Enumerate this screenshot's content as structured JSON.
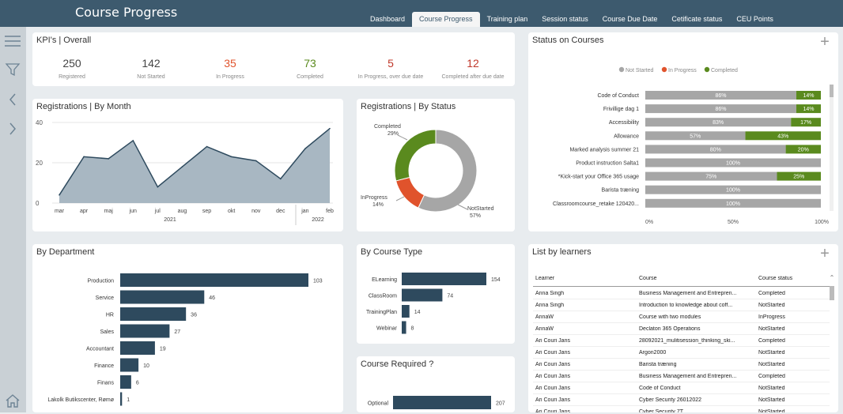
{
  "app": {
    "title": "Course Progress"
  },
  "tabs": [
    "Dashboard",
    "Course Progress",
    "Training plan",
    "Session status",
    "Course Due Date",
    "Cetificate status",
    "CEU Points"
  ],
  "kpi": {
    "title": "KPI's | Overall",
    "items": [
      {
        "value": "250",
        "label": "Registered",
        "color": "#444444"
      },
      {
        "value": "142",
        "label": "Not Started",
        "color": "#444444"
      },
      {
        "value": "35",
        "label": "In Progress",
        "color": "#e0532c"
      },
      {
        "value": "73",
        "label": "Completed",
        "color": "#5a8a1e"
      },
      {
        "value": "5",
        "label": "In Progress, over due date",
        "color": "#c0392b"
      },
      {
        "value": "12",
        "label": "Completed after due date",
        "color": "#c0392b"
      }
    ]
  },
  "reg_month": {
    "title": "Registrations | By Month",
    "chart_data": {
      "type": "area",
      "x": [
        "mar",
        "apr",
        "maj",
        "jun",
        "jul",
        "aug",
        "sep",
        "okt",
        "nov",
        "dec",
        "jan",
        "feb"
      ],
      "values": [
        4,
        23,
        22,
        31,
        8,
        18,
        28,
        23,
        21,
        12,
        27,
        37
      ],
      "ylim": [
        0,
        40
      ],
      "yticks": [
        "40",
        "20",
        "0"
      ],
      "year_labels": [
        "2021",
        "2022"
      ]
    }
  },
  "reg_status": {
    "title": "Registrations | By Status",
    "chart_data": {
      "type": "pie",
      "slices": [
        {
          "label": "NotStarted",
          "value": 57,
          "pct": "57%",
          "color": "#a6a6a6"
        },
        {
          "label": "InProgress",
          "value": 14,
          "pct": "14%",
          "color": "#e0532c"
        },
        {
          "label": "Completed",
          "value": 29,
          "pct": "29%",
          "color": "#5a8a1e"
        }
      ]
    }
  },
  "status_courses": {
    "title": "Status on Courses",
    "legend": [
      {
        "label": "Not Started",
        "color": "#a6a6a6"
      },
      {
        "label": "In Progress",
        "color": "#e0532c"
      },
      {
        "label": "Completed",
        "color": "#5a8a1e"
      }
    ],
    "chart_data": {
      "type": "bar",
      "stacked": true,
      "categories": [
        "Code of Conduct",
        "Frivillige dag 1",
        "Accessibility",
        "Allowance",
        "Marked analysis summer 21",
        "Product instruction Salta1",
        "*Kick-start your Office 365 usage",
        "Barista træning",
        "Classroomcourse_retake 120420..."
      ],
      "series": [
        {
          "name": "Not Started",
          "values": [
            86,
            86,
            83,
            57,
            80,
            100,
            75,
            100,
            100
          ],
          "labels": [
            "86%",
            "86%",
            "83%",
            "57%",
            "80%",
            "100%",
            "75%",
            "100%",
            "100%"
          ]
        },
        {
          "name": "Completed",
          "values": [
            14,
            14,
            17,
            43,
            20,
            0,
            25,
            0,
            0
          ],
          "labels": [
            "14%",
            "14%",
            "17%",
            "43%",
            "20%",
            "",
            "25%",
            "",
            ""
          ]
        }
      ],
      "xticks": [
        "0%",
        "50%",
        "100%"
      ]
    }
  },
  "department": {
    "title": "By Department",
    "chart_data": {
      "type": "bar",
      "orientation": "horizontal",
      "categories": [
        "Production",
        "Service",
        "HR",
        "Sales",
        "Accountant",
        "Finance",
        "Finans",
        "Lakolk Butikscenter, Rømø"
      ],
      "values": [
        103,
        46,
        36,
        27,
        19,
        10,
        6,
        1
      ],
      "labels": [
        "103",
        "46",
        "36",
        "27",
        "19",
        "10",
        "6",
        "1"
      ],
      "max": 103
    }
  },
  "course_type": {
    "title": "By Course Type",
    "chart_data": {
      "type": "bar",
      "orientation": "horizontal",
      "categories": [
        "ELearning",
        "ClassRoom",
        "TrainingPlan",
        "Webinar"
      ],
      "values": [
        154,
        74,
        14,
        8
      ],
      "labels": [
        "154",
        "74",
        "14",
        "8"
      ],
      "max": 154
    }
  },
  "course_required": {
    "title": "Course Required ?",
    "chart_data": {
      "type": "bar",
      "orientation": "horizontal",
      "categories": [
        "Optional"
      ],
      "values": [
        207
      ],
      "labels": [
        "207"
      ],
      "max": 207
    }
  },
  "learners": {
    "title": "List by learners",
    "columns": [
      "Learner",
      "Course",
      "Course status"
    ],
    "rows": [
      [
        "Anna Singh",
        "Business Management and Entrepren...",
        "Completed"
      ],
      [
        "Anna Singh",
        "Introduction to knowledge about coff...",
        "NotStarted"
      ],
      [
        "AnnaW",
        "Course with two modules",
        "InProgress"
      ],
      [
        "AnnaW",
        "Declaton 365 Operations",
        "NotStarted"
      ],
      [
        "Ari Couri Jans",
        "28092021_mulitisession_thinking_ski...",
        "Completed"
      ],
      [
        "Ari Couri Jans",
        "Argon2000",
        "NotStarted"
      ],
      [
        "Ari Couri Jans",
        "Barista træning",
        "NotStarted"
      ],
      [
        "Ari Couri Jans",
        "Business Management and Entrepren...",
        "Completed"
      ],
      [
        "Ari Couri Jans",
        "Code of Conduct",
        "NotStarted"
      ],
      [
        "Ari Couri Jans",
        "Cyber Security 26012022",
        "NotStarted"
      ],
      [
        "Ari Couri Jans",
        "Cyber Security 7T",
        "NotStarted"
      ]
    ]
  }
}
